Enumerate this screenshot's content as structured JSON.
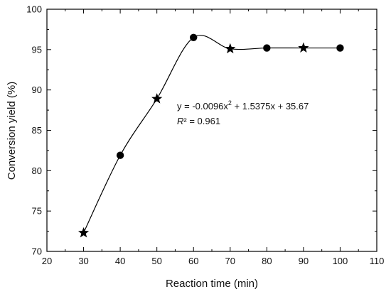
{
  "chart_data": {
    "type": "scatter",
    "xlabel": "Reaction time (min)",
    "ylabel": "Conversion yield (%)",
    "xlim": [
      20,
      110
    ],
    "ylim": [
      70,
      100
    ],
    "xticks": [
      "20",
      "30",
      "40",
      "50",
      "60",
      "70",
      "80",
      "90",
      "100",
      "110"
    ],
    "yticks": [
      "70",
      "75",
      "80",
      "85",
      "90",
      "95",
      "100"
    ],
    "grid": false,
    "series": [
      {
        "x": [
          30,
          40,
          50,
          60,
          70,
          80,
          90,
          100
        ],
        "y": [
          72.3,
          81.9,
          88.9,
          96.5,
          95.1,
          95.2,
          95.2,
          95.2
        ],
        "markers": [
          "star",
          "circle",
          "star",
          "circle",
          "star",
          "circle",
          "star",
          "circle"
        ],
        "color": "#000000"
      }
    ],
    "annotation": {
      "equation_prefix": "y = -0.0096x",
      "equation_exponent": "2",
      "equation_suffix": " + 1.5375x + 35.67",
      "r2_symbol": "R",
      "r2_rest": "² = 0.961"
    }
  }
}
